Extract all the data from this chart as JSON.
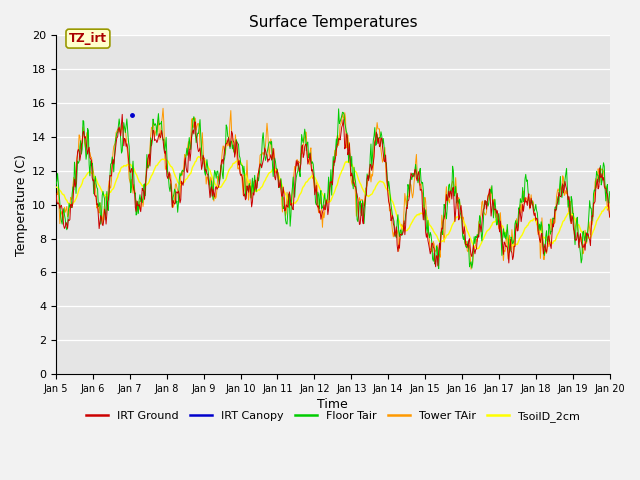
{
  "title": "Surface Temperatures",
  "xlabel": "Time",
  "ylabel": "Temperature (C)",
  "ylim": [
    0,
    20
  ],
  "x_tick_labels": [
    "Jan 5",
    "Jan 6",
    "Jan 7",
    "Jan 8",
    "Jan 9",
    "Jan 10",
    "Jan 11",
    "Jan 12",
    "Jan 13",
    "Jan 14",
    "Jan 15",
    "Jan 16",
    "Jan 17",
    "Jan 18",
    "Jan 19",
    "Jan 20"
  ],
  "annotation_text": "TZ_irt",
  "colors": {
    "IRT Ground": "#cc0000",
    "IRT Canopy": "#0000cc",
    "Floor Tair": "#00cc00",
    "Tower TAir": "#ff9900",
    "TsoilD_2cm": "#ffff00"
  },
  "plot_bg": "#e5e5e5",
  "fig_bg": "#f2f2f2",
  "legend_labels": [
    "IRT Ground",
    "IRT Canopy",
    "Floor Tair",
    "Tower TAir",
    "TsoilD_2cm"
  ]
}
